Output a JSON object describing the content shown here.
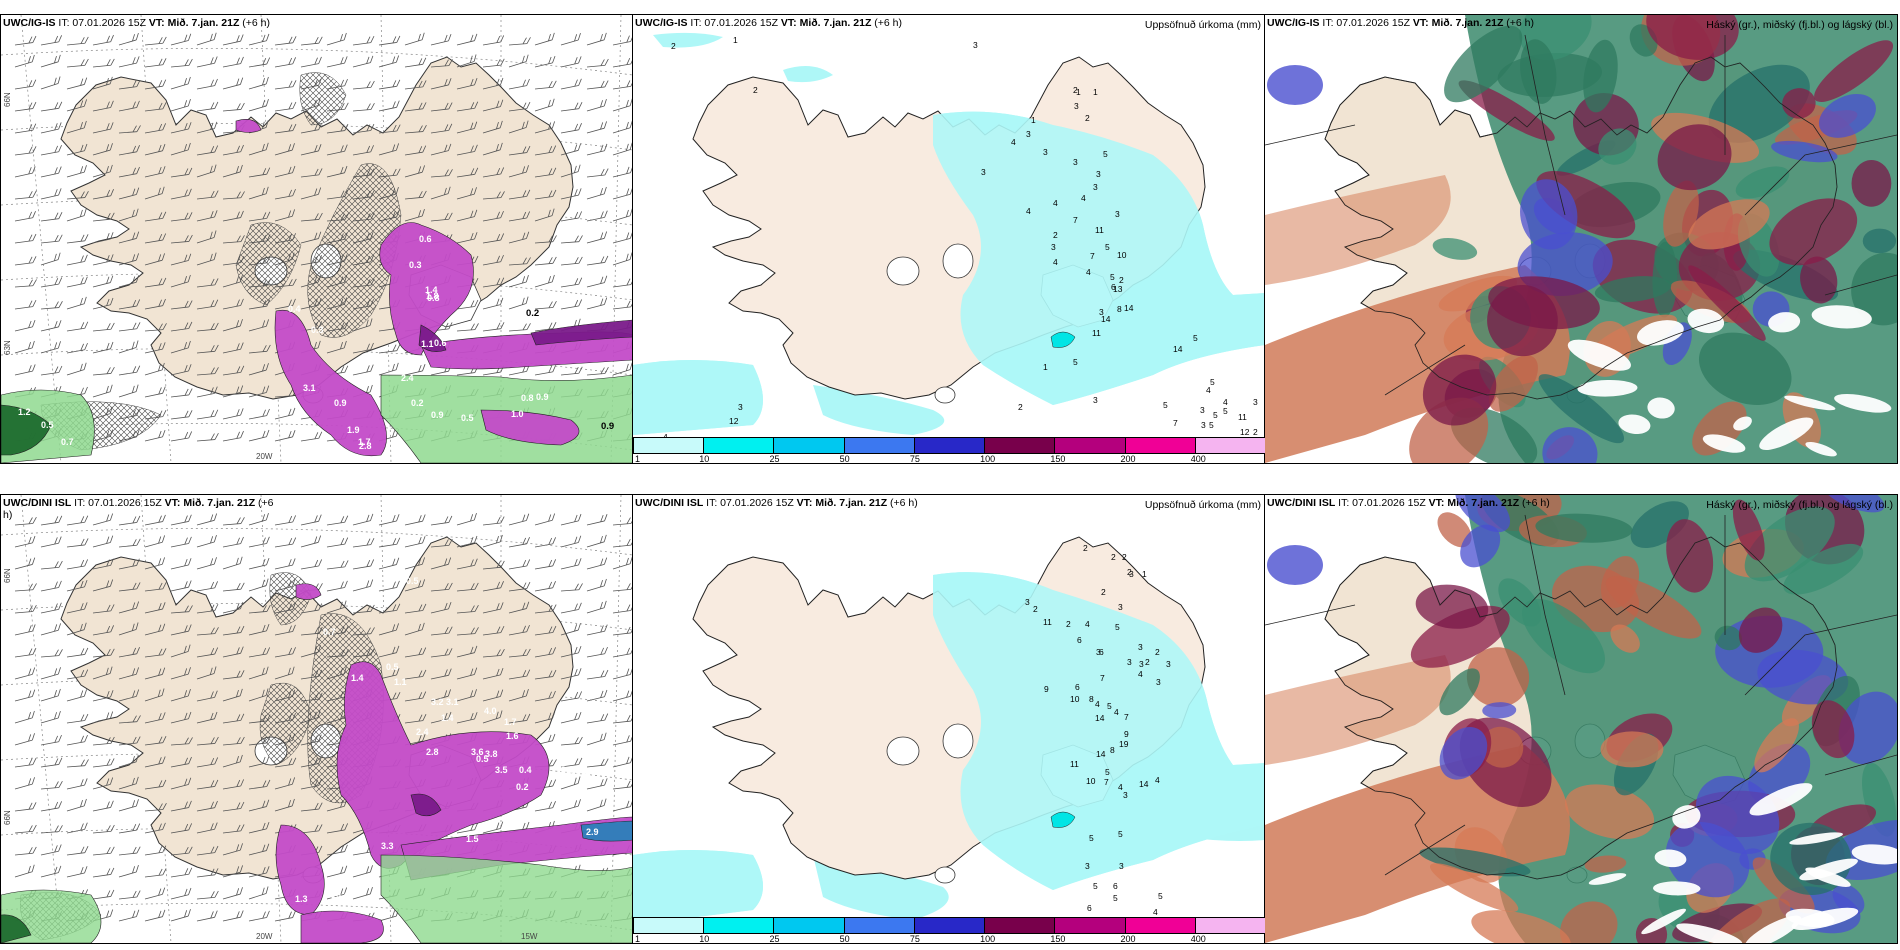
{
  "panels": [
    {
      "model": "UWC/IG-IS",
      "it": "IT: 07.01.2026 15Z",
      "vt_label": "VT:",
      "vt": "Mið. 7.jan. 21Z",
      "lead": "(+6 h)",
      "right_title": "",
      "lat_label": "66N",
      "lat_label2": "63N",
      "lon_label": "20W",
      "lon_label2": ""
    },
    {
      "model": "UWC/IG-IS",
      "it": "IT: 07.01.2026 15Z",
      "vt_label": "VT:",
      "vt": "Mið. 7.jan. 21Z",
      "lead": "(+6 h)",
      "right_title": "Uppsöfnuð úrkoma (mm)",
      "lat_label": "",
      "lat_label2": "",
      "lon_label": "",
      "lon_label2": ""
    },
    {
      "model": "UWC/IG-IS",
      "it": "IT: 07.01.2026 15Z",
      "vt_label": "VT:",
      "vt": "Mið. 7.jan. 21Z",
      "lead": "(+6 h)",
      "right_title": "Háský (gr.), miðský (fj.bl.) og lágský (bl.)",
      "lat_label": "",
      "lat_label2": "",
      "lon_label": "",
      "lon_label2": ""
    },
    {
      "model": "UWC/DINI ISL",
      "it": "IT: 07.01.2026 15Z",
      "vt_label": "VT:",
      "vt": "Mið. 7.jan. 21Z",
      "lead": "(+6",
      "lead2": "h)",
      "right_title": "",
      "lat_label": "66N",
      "lat_label2": "66N",
      "lon_label": "20W",
      "lon_label2": "15W"
    },
    {
      "model": "UWC/DINI ISL",
      "it": "IT: 07.01.2026 15Z",
      "vt_label": "VT:",
      "vt": "Mið. 7.jan. 21Z",
      "lead": "(+6 h)",
      "right_title": "Uppsöfnuð úrkoma (mm)",
      "lat_label": "",
      "lat_label2": "",
      "lon_label": "",
      "lon_label2": ""
    },
    {
      "model": "UWC/DINI ISL",
      "it": "IT: 07.01.2026 15Z",
      "vt_label": "VT:",
      "vt": "Mið. 7.jan. 21Z",
      "lead": "(+6 h)",
      "right_title": "Háský (gr.), miðský (fj.bl.) og lágský (bl.)",
      "lat_label": "",
      "lat_label2": "",
      "lon_label": "",
      "lon_label2": ""
    }
  ],
  "colorbar": {
    "ticks": [
      "1",
      "10",
      "25",
      "50",
      "75",
      "100",
      "150",
      "200",
      "400"
    ],
    "colors": [
      "#c8fafa",
      "#00f0f0",
      "#00c8f0",
      "#3c78f0",
      "#2828c8",
      "#78004b",
      "#b4007d",
      "#f00096",
      "#f5b4f0"
    ]
  },
  "precip_top": [
    "2",
    "1",
    "3",
    "2",
    "2",
    "1",
    "1",
    "3",
    "2",
    "1",
    "3",
    "4",
    "3",
    "3",
    "5",
    "3",
    "3",
    "3",
    "4",
    "4",
    "4",
    "7",
    "3",
    "11",
    "5",
    "7",
    "10",
    "5",
    "2",
    "2",
    "3",
    "4",
    "4",
    "6",
    "3",
    "14",
    "13",
    "11",
    "8",
    "14",
    "5",
    "1",
    "2",
    "3",
    "14",
    "5",
    "5",
    "4",
    "4",
    "3",
    "3",
    "5",
    "7",
    "5",
    "3",
    "11",
    "12",
    "2",
    "3",
    "12",
    "4",
    "5",
    "5"
  ],
  "precip_bot": [
    "2",
    "2",
    "2",
    "2",
    "3",
    "2",
    "1",
    "3",
    "2",
    "3",
    "2",
    "4",
    "11",
    "5",
    "6",
    "3",
    "6",
    "3",
    "2",
    "2",
    "3",
    "4",
    "3",
    "3",
    "3",
    "7",
    "6",
    "9",
    "10",
    "8",
    "4",
    "5",
    "4",
    "7",
    "9",
    "14",
    "19",
    "8",
    "14",
    "5",
    "7",
    "11",
    "10",
    "4",
    "14",
    "3",
    "4",
    "5",
    "5",
    "3",
    "3",
    "6",
    "5",
    "5",
    "4",
    "6",
    "6",
    "2",
    "5"
  ],
  "rain_top": [
    "0.2",
    "0.4",
    "0.3",
    "3.1",
    "0.9",
    "1.9",
    "1.7",
    "2.8",
    "0.6",
    "0.3",
    "1.4",
    "0.8",
    "1.8",
    "0.6",
    "2.4",
    "1.1",
    "0.2",
    "0.9",
    "0.9",
    "0.8",
    "0.5",
    "1.2",
    "0.5",
    "0.7",
    "1.0",
    "0.9"
  ],
  "rain_bot": [
    "0.5",
    "0.7",
    "1.4",
    "0.5",
    "1.1",
    "3.2",
    "3.1",
    "1.4",
    "4.0",
    "1.7",
    "1.6",
    "2.4",
    "2.8",
    "3.6",
    "3.8",
    "3.5",
    "0.5",
    "0.4",
    "3.0",
    "4.2",
    "0.2",
    "1.3",
    "10.4",
    "2.9",
    "1.5",
    "3.3"
  ],
  "icons": {
    "coastline": "iceland-coastline",
    "barbs": "wind-barb-icon",
    "hatch": "icing-hatch"
  }
}
